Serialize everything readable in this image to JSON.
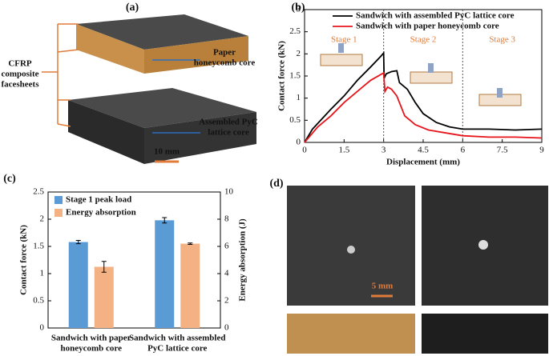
{
  "panel_labels": [
    "(a)",
    "(b)",
    "(c)",
    "(d)"
  ],
  "panel_a": {
    "facesheet_label": [
      "CFRP",
      "composite",
      "facesheets"
    ],
    "paper_label": [
      "Paper",
      "honeycomb core"
    ],
    "lattice_label": [
      "Assembled PyC",
      "lattice core"
    ],
    "scale_bar": "10 mm"
  },
  "panel_d": {
    "scale_bar": "5 mm"
  },
  "chart_data": [
    {
      "type": "line",
      "xlabel": "Displacement (mm)",
      "ylabel": "Contact force (kN)",
      "xlim": [
        0,
        9
      ],
      "xticks": [
        0,
        1.5,
        3,
        4.5,
        6,
        7.5,
        9
      ],
      "ylim": [
        0,
        3
      ],
      "yticks": [
        0,
        0.5,
        1,
        1.5,
        2,
        2.5,
        3
      ],
      "stage_labels": [
        "Stage 1",
        "Stage 2",
        "Stage 3"
      ],
      "stage_boundaries": [
        3,
        6
      ],
      "legend": "upper center",
      "series": [
        {
          "name": "Sandwich with assembled PyC lattice core",
          "color": "#000000",
          "x": [
            0,
            0.3,
            1,
            1.5,
            2,
            2.5,
            2.9,
            3,
            3.02,
            3.1,
            3.3,
            3.5,
            3.6,
            3.9,
            4.2,
            4.5,
            5,
            5.5,
            6,
            7,
            8,
            9
          ],
          "values": [
            0,
            0.3,
            0.75,
            1.05,
            1.4,
            1.7,
            1.95,
            2.02,
            1.45,
            1.55,
            1.6,
            1.62,
            1.35,
            1.2,
            0.9,
            0.65,
            0.45,
            0.35,
            0.3,
            0.3,
            0.28,
            0.3
          ]
        },
        {
          "name": "Sandwich with paper honeycomb core",
          "color": "#e8141b",
          "x": [
            0,
            0.5,
            1,
            1.5,
            2,
            2.5,
            3,
            3.05,
            3.15,
            3.3,
            3.5,
            3.8,
            4.2,
            4.7,
            5.5,
            6,
            7,
            8,
            9
          ],
          "values": [
            0,
            0.35,
            0.6,
            0.9,
            1.15,
            1.4,
            1.57,
            1.15,
            1.25,
            1.2,
            1.05,
            0.6,
            0.4,
            0.28,
            0.2,
            0.15,
            0.12,
            0.12,
            0.1
          ]
        }
      ]
    },
    {
      "type": "bar",
      "ylabel": "Contact force (kN)",
      "y2label": "Energy absorption (J)",
      "categories": [
        [
          "Sandwich with paper",
          "honeycomb core"
        ],
        [
          "Sandwich with assembled",
          "PyC lattice core"
        ]
      ],
      "ylim": [
        0,
        2.5
      ],
      "yticks": [
        0,
        0.5,
        1,
        1.5,
        2,
        2.5
      ],
      "y2lim": [
        0,
        10
      ],
      "y2ticks": [
        0,
        2,
        4,
        6,
        8,
        10
      ],
      "legend": "upper left",
      "series": [
        {
          "name": "Stage 1 peak load",
          "color": "#5b9bd5",
          "values": [
            1.58,
            1.98
          ],
          "errors": [
            0.03,
            0.05
          ]
        },
        {
          "name": "Energy absorption",
          "color": "#f4b183",
          "axis": "y2",
          "values": [
            4.5,
            6.2
          ],
          "errors": [
            0.4,
            0.05
          ]
        }
      ]
    }
  ]
}
